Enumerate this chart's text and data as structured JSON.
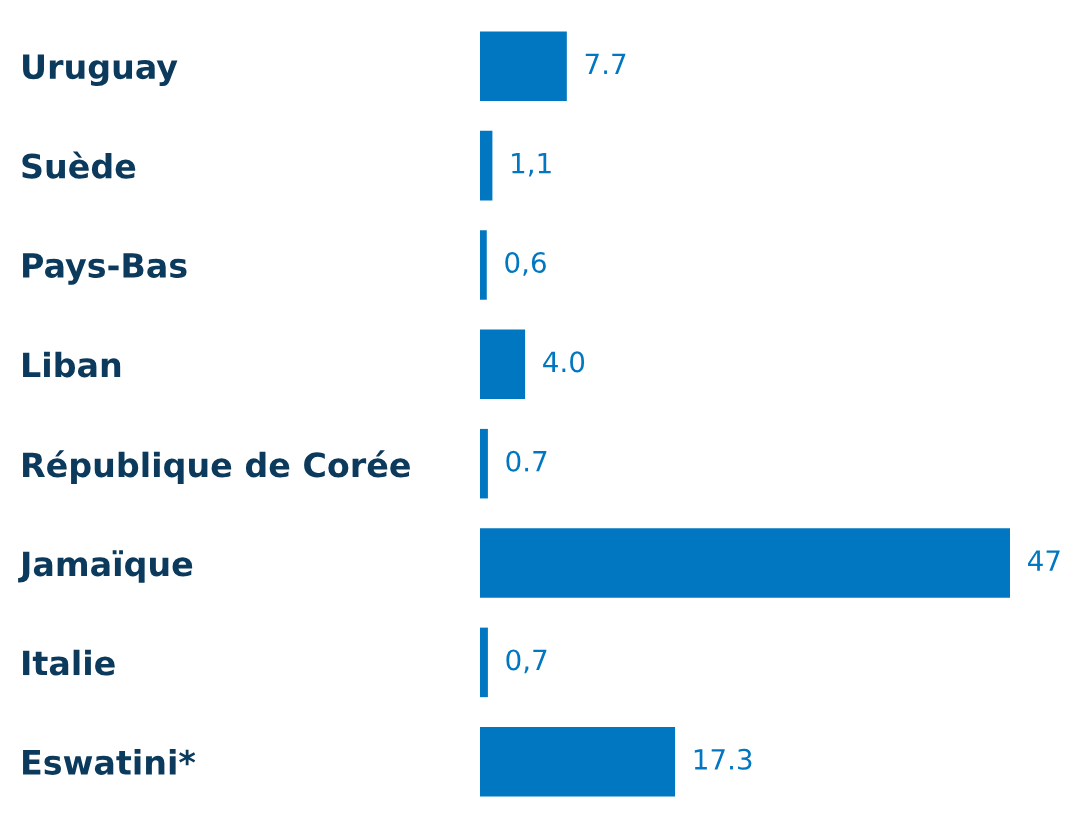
{
  "chart_data": {
    "type": "bar",
    "orientation": "horizontal",
    "categories": [
      "Uruguay",
      "Suède",
      "Pays-Bas",
      "Liban",
      "République de Corée",
      "Jamaïque",
      "Italie",
      "Eswatini*"
    ],
    "values": [
      7.7,
      1.1,
      0.6,
      4.0,
      0.7,
      47,
      0.7,
      17.3
    ],
    "value_labels": [
      "7.7",
      "1,1",
      "0,6",
      "4.0",
      "0.7",
      "47",
      "0,7",
      "17.3"
    ],
    "color": "#0077c0"
  }
}
